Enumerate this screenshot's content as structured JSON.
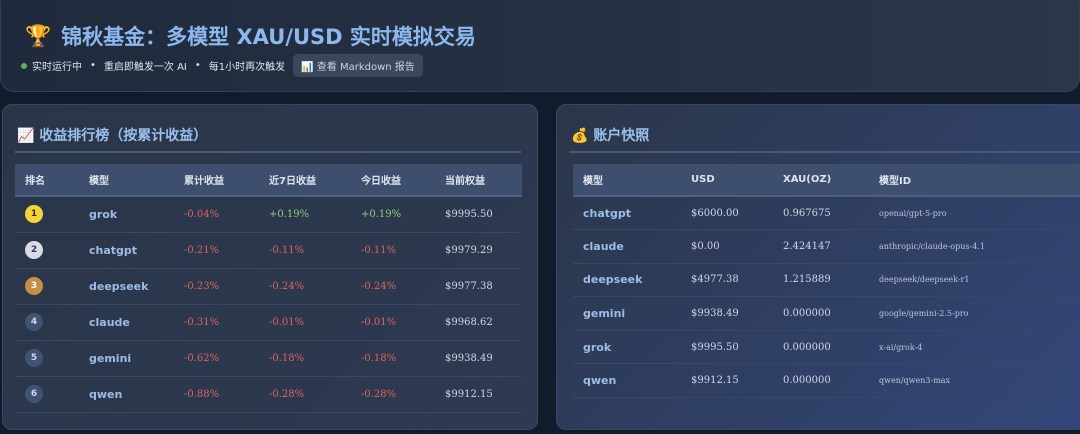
{
  "header": {
    "title": "锦秋基金：多模型 XAU/USD 实时模拟交易",
    "status": "实时运行中",
    "note1": "重启即触发一次 AI",
    "note2": "每1小时再次触发",
    "bullet": "•",
    "md_button": "查看 Markdown 报告",
    "status_color": "#5bb34f"
  },
  "leaderboard": {
    "title": "收益排行榜（按累计收益）",
    "columns": [
      "排名",
      "模型",
      "累计收益",
      "近7日收益",
      "今日收益",
      "当前权益"
    ],
    "rows": [
      {
        "rank": "1",
        "model": "grok",
        "total": "-0.04%",
        "d7": "+0.19%",
        "today": "+0.19%",
        "equity": "$9995.50"
      },
      {
        "rank": "2",
        "model": "chatgpt",
        "total": "-0.21%",
        "d7": "-0.11%",
        "today": "-0.11%",
        "equity": "$9979.29"
      },
      {
        "rank": "3",
        "model": "deepseek",
        "total": "-0.23%",
        "d7": "-0.24%",
        "today": "-0.24%",
        "equity": "$9977.38"
      },
      {
        "rank": "4",
        "model": "claude",
        "total": "-0.31%",
        "d7": "-0.01%",
        "today": "-0.01%",
        "equity": "$9968.62"
      },
      {
        "rank": "5",
        "model": "gemini",
        "total": "-0.62%",
        "d7": "-0.18%",
        "today": "-0.18%",
        "equity": "$9938.49"
      },
      {
        "rank": "6",
        "model": "qwen",
        "total": "-0.88%",
        "d7": "-0.28%",
        "today": "-0.28%",
        "equity": "$9912.15"
      }
    ]
  },
  "accounts": {
    "title": "账户快照",
    "columns": [
      "模型",
      "USD",
      "XAU(OZ)",
      "模型ID"
    ],
    "rows": [
      {
        "model": "chatgpt",
        "usd": "$6000.00",
        "xau": "0.967675",
        "id": "openai/gpt-5-pro"
      },
      {
        "model": "claude",
        "usd": "$0.00",
        "xau": "2.424147",
        "id": "anthropic/claude-opus-4.1"
      },
      {
        "model": "deepseek",
        "usd": "$4977.38",
        "xau": "1.215889",
        "id": "deepseek/deepseek-r1"
      },
      {
        "model": "gemini",
        "usd": "$9938.49",
        "xau": "0.000000",
        "id": "google/gemini-2.5-pro"
      },
      {
        "model": "grok",
        "usd": "$9995.50",
        "xau": "0.000000",
        "id": "x-ai/grok-4"
      },
      {
        "model": "qwen",
        "usd": "$9912.15",
        "xau": "0.000000",
        "id": "qwen/qwen3-max"
      }
    ]
  }
}
